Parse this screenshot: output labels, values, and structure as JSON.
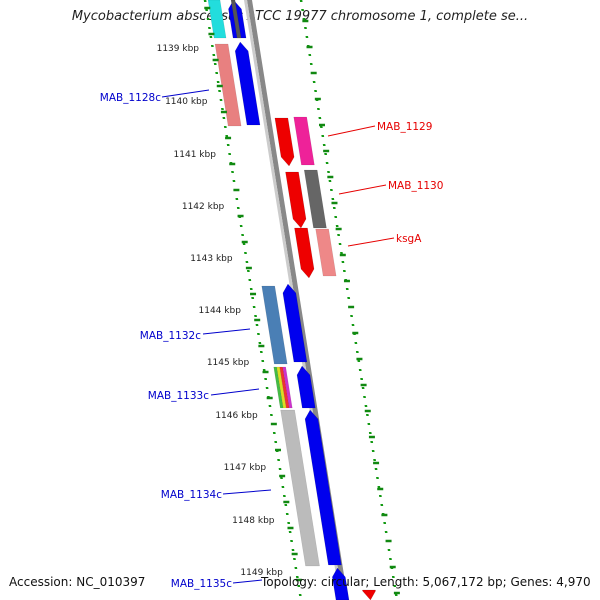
{
  "title": "Mycobacterium abscessus ATCC 19977 chromosome 1, complete se...",
  "footer": {
    "accession": "Accession: NC_010397",
    "summary": "Topology: circular; Length: 5,067,172 bp; Genes: 4,970"
  },
  "ticks": [
    "1139 kbp",
    "1140 kbp",
    "1141 kbp",
    "1142 kbp",
    "1143 kbp",
    "1144 kbp",
    "1145 kbp",
    "1146 kbp",
    "1147 kbp",
    "1148 kbp",
    "1149 kbp"
  ],
  "genes": [
    {
      "name": "MAB_1128c",
      "strand": "minus",
      "color": "#0000cc"
    },
    {
      "name": "MAB_1129",
      "strand": "plus",
      "color": "#e60000"
    },
    {
      "name": "MAB_1130",
      "strand": "plus",
      "color": "#e60000"
    },
    {
      "name": "ksgA",
      "strand": "plus",
      "color": "#e60000"
    },
    {
      "name": "MAB_1132c",
      "strand": "minus",
      "color": "#0000cc"
    },
    {
      "name": "MAB_1133c",
      "strand": "minus",
      "color": "#0000cc"
    },
    {
      "name": "MAB_1134c",
      "strand": "minus",
      "color": "#0000cc"
    },
    {
      "name": "MAB_1135c",
      "strand": "minus",
      "color": "#0000cc"
    }
  ],
  "colors": {
    "minus_strand": "#0000ff",
    "plus_strand": "#ff0000",
    "backbone": "#808080",
    "gc_skew_dots": "#008800"
  }
}
